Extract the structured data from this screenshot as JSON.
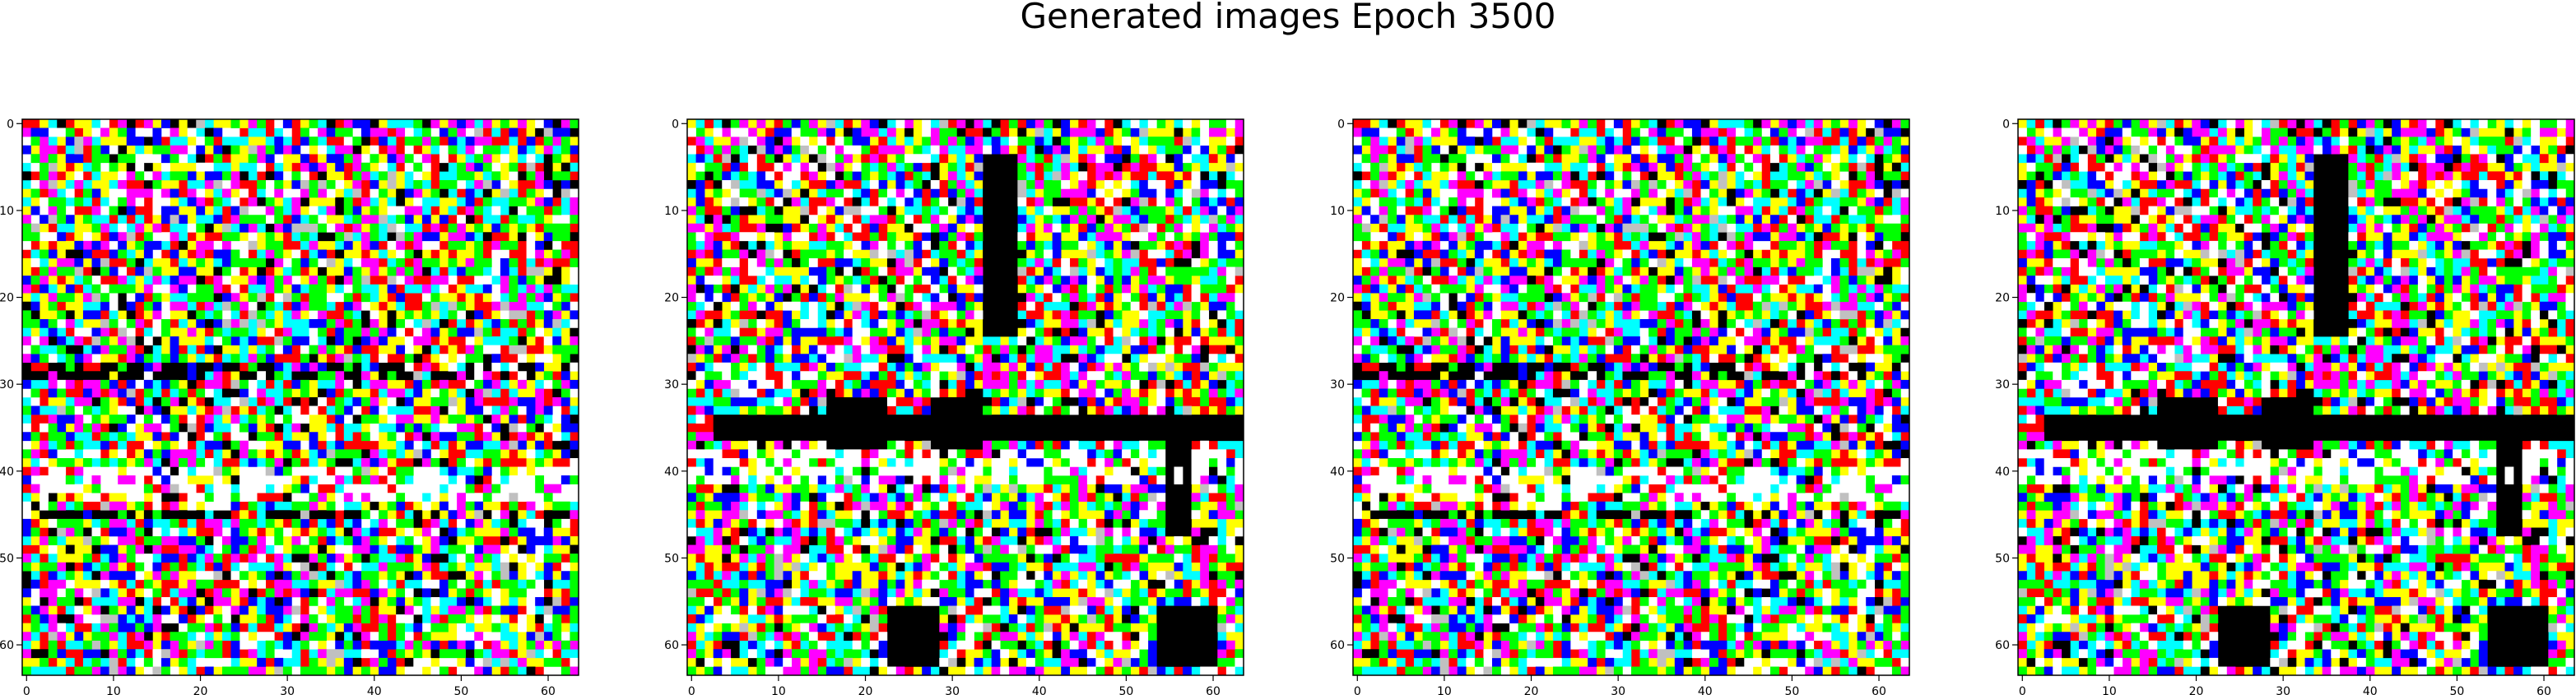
{
  "title": "Generated images Epoch 3500",
  "chart_data": [
    {
      "type": "heatmap",
      "image_index": 1,
      "variant": "A",
      "grid_size": 64,
      "xlim": [
        0,
        63
      ],
      "ylim": [
        63,
        0
      ],
      "xticks": [
        0,
        10,
        20,
        30,
        40,
        50,
        60
      ],
      "yticks": [
        0,
        10,
        20,
        30,
        40,
        50,
        60
      ],
      "grid": false
    },
    {
      "type": "heatmap",
      "image_index": 2,
      "variant": "B",
      "grid_size": 64,
      "xlim": [
        0,
        63
      ],
      "ylim": [
        63,
        0
      ],
      "xticks": [
        0,
        10,
        20,
        30,
        40,
        50,
        60
      ],
      "yticks": [
        0,
        10,
        20,
        30,
        40,
        50,
        60
      ],
      "grid": false
    },
    {
      "type": "heatmap",
      "image_index": 3,
      "variant": "A",
      "grid_size": 64,
      "xlim": [
        0,
        63
      ],
      "ylim": [
        63,
        0
      ],
      "xticks": [
        0,
        10,
        20,
        30,
        40,
        50,
        60
      ],
      "yticks": [
        0,
        10,
        20,
        30,
        40,
        50,
        60
      ],
      "grid": false
    },
    {
      "type": "heatmap",
      "image_index": 4,
      "variant": "B",
      "grid_size": 64,
      "xlim": [
        0,
        63
      ],
      "ylim": [
        63,
        0
      ],
      "xticks": [
        0,
        10,
        20,
        30,
        40,
        50,
        60
      ],
      "yticks": [
        0,
        10,
        20,
        30,
        40,
        50,
        60
      ],
      "grid": false
    }
  ],
  "palette": [
    "#ff0000",
    "#00ff00",
    "#0000ff",
    "#ffff00",
    "#00ffff",
    "#ff00ff",
    "#ffffff",
    "#000000",
    "#8b4513",
    "#c0c0c0"
  ]
}
